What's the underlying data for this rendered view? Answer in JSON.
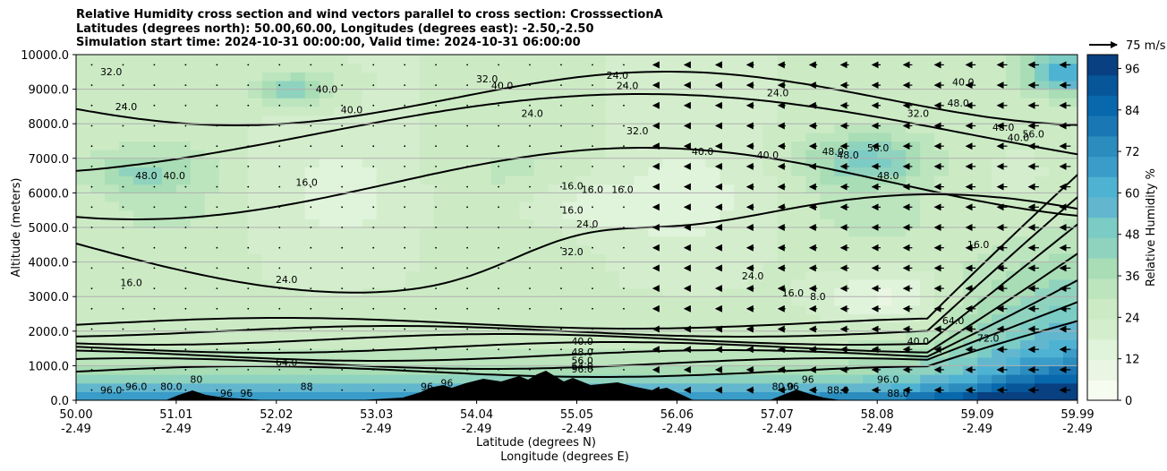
{
  "title": {
    "line1": "Relative Humidity cross section and wind vectors parallel to cross section: CrosssectionA",
    "line2": "Latitudes (degrees north): 50.00,60.00, Longitudes (degrees east): -2.50,-2.50",
    "line3": "Simulation start time: 2024-10-31 00:00:00, Valid time: 2024-10-31 06:00:00"
  },
  "colors": {
    "scale": [
      "#f7fcf0",
      "#eaf6e3",
      "#e0f3db",
      "#d4eecd",
      "#ccebc5",
      "#bce5be",
      "#a8ddb5",
      "#8fd3bf",
      "#7bccc4",
      "#62b7cf",
      "#4eb3d3",
      "#3a9cc8",
      "#2b8cbe",
      "#1977b4",
      "#0868ac",
      "#07569a",
      "#084081"
    ],
    "terrain": "#000000",
    "grid": "#b0b0b0"
  },
  "chart_data": {
    "type": "heatmap",
    "subtype": "filled contour cross section with line contours and wind vectors",
    "xlabel": "Latitude (degrees N)",
    "xlabel2": "Longitude (degrees E)",
    "ylabel": "Altitude (meters)",
    "colorbar_label": "Relative Humidity %",
    "x_ticks_lat": [
      "50.00",
      "51.01",
      "52.02",
      "53.03",
      "54.04",
      "55.05",
      "56.06",
      "57.07",
      "58.08",
      "59.09",
      "59.99"
    ],
    "x_ticks_lon": [
      "-2.49",
      "-2.49",
      "-2.49",
      "-2.49",
      "-2.49",
      "-2.49",
      "-2.49",
      "-2.49",
      "-2.49",
      "-2.49",
      "-2.49"
    ],
    "y_ticks": [
      "0.0",
      "1000.0",
      "2000.0",
      "3000.0",
      "4000.0",
      "5000.0",
      "6000.0",
      "7000.0",
      "8000.0",
      "9000.0",
      "10000.0"
    ],
    "ylim": [
      0,
      10000
    ],
    "xlim": [
      50.0,
      59.99
    ],
    "colorbar_ticks": [
      "0",
      "12",
      "24",
      "36",
      "48",
      "60",
      "72",
      "84",
      "96"
    ],
    "colorbar_range": [
      0,
      100
    ],
    "grid": "horizontal",
    "quiver_key": "75 m/s",
    "contour_labels": [
      {
        "text": "32.0",
        "lat": 50.35,
        "alt": 9400
      },
      {
        "text": "24.0",
        "lat": 50.5,
        "alt": 8400
      },
      {
        "text": "48.0",
        "lat": 50.7,
        "alt": 6400
      },
      {
        "text": "40.0",
        "lat": 50.98,
        "alt": 6400
      },
      {
        "text": "16.0",
        "lat": 50.55,
        "alt": 3300
      },
      {
        "text": "40.0",
        "lat": 52.5,
        "alt": 8900
      },
      {
        "text": "40.0",
        "lat": 52.75,
        "alt": 8300
      },
      {
        "text": "24.0",
        "lat": 52.1,
        "alt": 3400
      },
      {
        "text": "16.0",
        "lat": 52.3,
        "alt": 6200
      },
      {
        "text": "32.0",
        "lat": 54.1,
        "alt": 9200
      },
      {
        "text": "40.0",
        "lat": 54.25,
        "alt": 9000
      },
      {
        "text": "24.0",
        "lat": 54.55,
        "alt": 8200
      },
      {
        "text": "16.0",
        "lat": 54.95,
        "alt": 6100
      },
      {
        "text": "16.0",
        "lat": 54.95,
        "alt": 5400
      },
      {
        "text": "24.0",
        "lat": 55.1,
        "alt": 5000
      },
      {
        "text": "32.0",
        "lat": 54.95,
        "alt": 4200
      },
      {
        "text": "16.0",
        "lat": 55.15,
        "alt": 6000
      },
      {
        "text": "16.0",
        "lat": 55.45,
        "alt": 6000
      },
      {
        "text": "24.0",
        "lat": 55.4,
        "alt": 9300
      },
      {
        "text": "24.0",
        "lat": 55.5,
        "alt": 9000
      },
      {
        "text": "32.0",
        "lat": 55.6,
        "alt": 7700
      },
      {
        "text": "40.0",
        "lat": 56.25,
        "alt": 7100
      },
      {
        "text": "40.0",
        "lat": 56.9,
        "alt": 7000
      },
      {
        "text": "24.0",
        "lat": 56.75,
        "alt": 3500
      },
      {
        "text": "24.0",
        "lat": 57.0,
        "alt": 8800
      },
      {
        "text": "16.0",
        "lat": 57.15,
        "alt": 3000
      },
      {
        "text": "8.0",
        "lat": 57.4,
        "alt": 2900
      },
      {
        "text": "48.0",
        "lat": 57.55,
        "alt": 7100
      },
      {
        "text": "48.0",
        "lat": 57.7,
        "alt": 7000
      },
      {
        "text": "56.0",
        "lat": 58.0,
        "alt": 7200
      },
      {
        "text": "48.0",
        "lat": 58.1,
        "alt": 6400
      },
      {
        "text": "32.0",
        "lat": 58.4,
        "alt": 8200
      },
      {
        "text": "48.0",
        "lat": 58.8,
        "alt": 8500
      },
      {
        "text": "40.0",
        "lat": 58.85,
        "alt": 9100
      },
      {
        "text": "40.0",
        "lat": 59.4,
        "alt": 7500
      },
      {
        "text": "48.0",
        "lat": 59.25,
        "alt": 7800
      },
      {
        "text": "56.0",
        "lat": 59.55,
        "alt": 7600
      },
      {
        "text": "16.0",
        "lat": 59.0,
        "alt": 4400
      },
      {
        "text": "40.0",
        "lat": 58.4,
        "alt": 1600
      },
      {
        "text": "64.0",
        "lat": 58.75,
        "alt": 2200
      },
      {
        "text": "72.0",
        "lat": 59.1,
        "alt": 1700
      },
      {
        "text": "40.0",
        "lat": 55.05,
        "alt": 1600
      },
      {
        "text": "48.0",
        "lat": 55.05,
        "alt": 1300
      },
      {
        "text": "56.0",
        "lat": 55.05,
        "alt": 1050
      },
      {
        "text": "64.0",
        "lat": 55.05,
        "alt": 900
      },
      {
        "text": "96.0",
        "lat": 55.05,
        "alt": 800
      },
      {
        "text": "64.0",
        "lat": 52.1,
        "alt": 1000
      },
      {
        "text": "88",
        "lat": 52.3,
        "alt": 300
      },
      {
        "text": "96.0",
        "lat": 50.35,
        "alt": 200
      },
      {
        "text": "96.0",
        "lat": 50.6,
        "alt": 300
      },
      {
        "text": "80.0",
        "lat": 50.95,
        "alt": 300
      },
      {
        "text": "80",
        "lat": 51.2,
        "alt": 500
      },
      {
        "text": "96",
        "lat": 51.5,
        "alt": 100
      },
      {
        "text": "96",
        "lat": 51.7,
        "alt": 100
      },
      {
        "text": "96",
        "lat": 53.5,
        "alt": 300
      },
      {
        "text": "96",
        "lat": 53.7,
        "alt": 400
      },
      {
        "text": "96",
        "lat": 57.15,
        "alt": 300
      },
      {
        "text": "80.0",
        "lat": 57.05,
        "alt": 300
      },
      {
        "text": "96",
        "lat": 57.3,
        "alt": 500
      },
      {
        "text": "88.0",
        "lat": 57.6,
        "alt": 200
      },
      {
        "text": "96.0",
        "lat": 58.1,
        "alt": 500
      },
      {
        "text": "88.0",
        "lat": 58.2,
        "alt": 100
      }
    ]
  }
}
